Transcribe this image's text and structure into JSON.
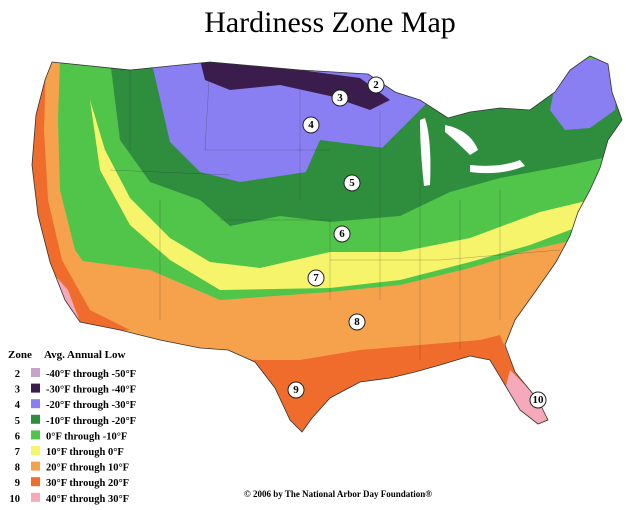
{
  "title": "Hardiness Zone Map",
  "legend": {
    "header": {
      "zone": "Zone",
      "range": "Avg. Annual Low"
    },
    "zones": [
      {
        "zone": "2",
        "color": "#c7a3c9",
        "range": "-40°F through -50°F"
      },
      {
        "zone": "3",
        "color": "#3a1d4c",
        "range": "-30°F through -40°F"
      },
      {
        "zone": "4",
        "color": "#8a7ff2",
        "range": "-20°F through -30°F"
      },
      {
        "zone": "5",
        "color": "#2f8e3e",
        "range": "-10°F through -20°F"
      },
      {
        "zone": "6",
        "color": "#50c54a",
        "range": "0°F through -10°F"
      },
      {
        "zone": "7",
        "color": "#f6f46a",
        "range": "10°F through 0°F"
      },
      {
        "zone": "8",
        "color": "#f6a24c",
        "range": "20°F through 10°F"
      },
      {
        "zone": "9",
        "color": "#f06c2c",
        "range": "30°F through 20°F"
      },
      {
        "zone": "10",
        "color": "#f6a9bb",
        "range": "40°F through 30°F"
      }
    ]
  },
  "map_labels": [
    "2",
    "3",
    "4",
    "5",
    "6",
    "7",
    "8",
    "9",
    "10"
  ],
  "copyright": "© 2006 by The National Arbor Day Foundation®"
}
